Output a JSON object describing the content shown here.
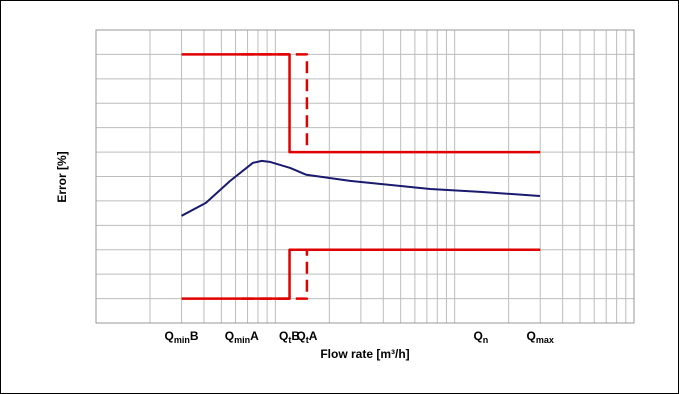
{
  "chart_data": {
    "type": "line",
    "x_label": "Flow rate [m³/h]",
    "y_label": "Error [%]",
    "xlim": [
      0.1,
      100
    ],
    "ylim": [
      -5,
      7
    ],
    "x_log": true,
    "grid": true,
    "xticks": [
      {
        "value": 0.3,
        "label": {
          "main": "Q",
          "sub": "min",
          "suffix": "B"
        }
      },
      {
        "value": 0.65,
        "label": {
          "main": "Q",
          "sub": "min",
          "suffix": "A"
        }
      },
      {
        "value": 1.2,
        "label": {
          "main": "Q",
          "sub": "t",
          "suffix": "B"
        }
      },
      {
        "value": 1.5,
        "label": {
          "main": "Q",
          "sub": "t",
          "suffix": "A"
        }
      },
      {
        "value": 14,
        "label": {
          "main": "Q",
          "sub": "n"
        }
      },
      {
        "value": 30,
        "label": {
          "main": "Q",
          "sub": "max"
        }
      }
    ],
    "series": [
      {
        "color": "#1a1a6e",
        "dash": false,
        "x": [
          0.3,
          0.41,
          0.56,
          0.75,
          0.84,
          0.93,
          1.21,
          1.49,
          2.61,
          7.3,
          13.9,
          29.9
        ],
        "values": [
          -0.61,
          -0.08,
          0.82,
          1.56,
          1.64,
          1.6,
          1.35,
          1.07,
          0.82,
          0.49,
          0.37,
          0.2
        ]
      },
      {
        "color": "#e00000",
        "dash": false,
        "x": [
          0.3,
          1.2,
          1.2,
          30
        ],
        "values": [
          6,
          6,
          2,
          2
        ]
      },
      {
        "color": "#e00000",
        "dash": false,
        "x": [
          0.3,
          1.2,
          1.2,
          30
        ],
        "values": [
          -4,
          -4,
          -2,
          -2
        ]
      },
      {
        "color": "#e00000",
        "dash": true,
        "x": [
          0.65,
          1.5,
          1.5
        ],
        "values": [
          6,
          6,
          2
        ]
      },
      {
        "color": "#e00000",
        "dash": true,
        "x": [
          0.65,
          1.5,
          1.5
        ],
        "values": [
          -4,
          -4,
          -2
        ]
      }
    ]
  }
}
